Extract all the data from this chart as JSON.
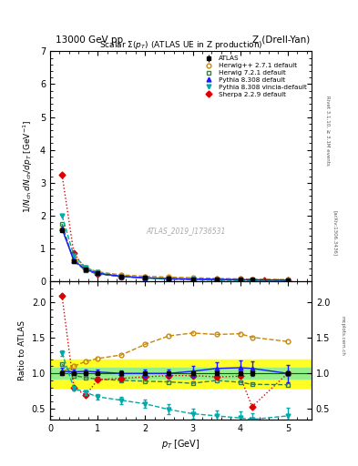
{
  "title_top": "13000 GeV pp",
  "title_right": "Z (Drell-Yan)",
  "plot_title": "Scalar Σ(p_T) (ATLAS UE in Z production)",
  "ylabel_main": "1/N_{ch} dN_{ch}/dp_T [GeV⁻¹]",
  "ylabel_ratio": "Ratio to ATLAS",
  "xlabel": "p_T [GeV]",
  "watermark": "ATLAS_2019_I1736531",
  "rivet_label": "Rivet 3.1.10, ≥ 3.1M events",
  "arxiv_label": "[arXiv:1306.3436]",
  "mcplots_label": "mcplots.cern.ch",
  "atlas_x": [
    0.25,
    0.5,
    0.75,
    1.0,
    1.5,
    2.0,
    2.5,
    3.0,
    3.5,
    4.0,
    4.25,
    5.0
  ],
  "atlas_y": [
    1.55,
    0.62,
    0.35,
    0.24,
    0.155,
    0.11,
    0.085,
    0.07,
    0.058,
    0.048,
    0.045,
    0.038
  ],
  "atlas_yerr": [
    0.05,
    0.02,
    0.01,
    0.008,
    0.005,
    0.004,
    0.003,
    0.003,
    0.002,
    0.002,
    0.002,
    0.002
  ],
  "herwig271_x": [
    0.25,
    0.5,
    0.75,
    1.0,
    1.5,
    2.0,
    2.5,
    3.0,
    3.5,
    4.0,
    4.25,
    5.0
  ],
  "herwig271_y": [
    1.58,
    0.68,
    0.41,
    0.29,
    0.195,
    0.155,
    0.13,
    0.11,
    0.09,
    0.075,
    0.068,
    0.055
  ],
  "herwig721_x": [
    0.25,
    0.5,
    0.75,
    1.0,
    1.5,
    2.0,
    2.5,
    3.0,
    3.5,
    4.0,
    4.25,
    5.0
  ],
  "herwig721_y": [
    1.75,
    0.6,
    0.33,
    0.22,
    0.14,
    0.098,
    0.075,
    0.06,
    0.052,
    0.042,
    0.038,
    0.032
  ],
  "pythia308_x": [
    0.25,
    0.5,
    0.75,
    1.0,
    1.5,
    2.0,
    2.5,
    3.0,
    3.5,
    4.0,
    4.25,
    5.0
  ],
  "pythia308_y": [
    1.6,
    0.63,
    0.36,
    0.245,
    0.155,
    0.11,
    0.085,
    0.072,
    0.062,
    0.052,
    0.048,
    0.038
  ],
  "pythia308v_x": [
    0.25,
    0.5,
    0.75,
    1.0,
    1.5,
    2.0,
    2.5,
    3.0,
    3.5,
    4.0,
    4.25,
    5.0
  ],
  "pythia308v_y": [
    2.0,
    0.78,
    0.42,
    0.27,
    0.155,
    0.1,
    0.065,
    0.045,
    0.032,
    0.022,
    0.019,
    0.015
  ],
  "sherpa229_x": [
    0.25,
    0.5,
    0.75,
    1.0,
    1.5,
    2.0,
    2.5,
    3.0,
    3.5,
    4.0,
    4.5,
    5.0
  ],
  "sherpa229_y": [
    3.25,
    0.85,
    0.38,
    0.235,
    0.145,
    0.105,
    0.082,
    0.068,
    0.055,
    0.046,
    0.042,
    0.038
  ],
  "ratio_x": [
    0.25,
    0.5,
    0.75,
    1.0,
    1.5,
    2.0,
    2.5,
    3.0,
    3.5,
    4.0,
    4.25,
    5.0
  ],
  "ratio_herwig271": [
    1.02,
    1.1,
    1.17,
    1.21,
    1.26,
    1.41,
    1.53,
    1.57,
    1.55,
    1.56,
    1.51,
    1.45
  ],
  "ratio_herwig721": [
    1.13,
    0.97,
    0.94,
    0.92,
    0.9,
    0.89,
    0.88,
    0.86,
    0.9,
    0.875,
    0.845,
    0.84
  ],
  "ratio_pythia308": [
    1.03,
    1.02,
    1.03,
    1.02,
    1.0,
    1.0,
    1.0,
    1.03,
    1.07,
    1.08,
    1.07,
    1.0
  ],
  "ratio_pythia308_err": [
    0.05,
    0.03,
    0.03,
    0.03,
    0.04,
    0.05,
    0.06,
    0.08,
    0.09,
    0.1,
    0.1,
    0.12
  ],
  "ratio_pythia308v": [
    1.29,
    0.79,
    0.73,
    0.67,
    0.62,
    0.57,
    0.49,
    0.43,
    0.4,
    0.37,
    0.35,
    0.4
  ],
  "ratio_pythia308v_err": [
    0.04,
    0.03,
    0.03,
    0.04,
    0.05,
    0.06,
    0.07,
    0.07,
    0.08,
    0.09,
    0.09,
    0.12
  ],
  "ratio_sherpa229_x": [
    0.25,
    0.5,
    0.75,
    1.0,
    1.5,
    2.0,
    2.5,
    3.0,
    3.5,
    4.0,
    4.25,
    5.0
  ],
  "ratio_sherpa229": [
    2.1,
    0.8,
    0.69,
    0.91,
    0.93,
    0.95,
    0.97,
    0.97,
    0.95,
    0.96,
    0.53,
    1.0
  ],
  "ratio_atlas_band_green": 0.08,
  "ratio_atlas_band_yellow": 0.2,
  "color_herwig271": "#c8860a",
  "color_herwig721": "#3a7d44",
  "color_pythia308": "#1a1aff",
  "color_pythia308v": "#00aaaa",
  "color_sherpa229": "#dd0000",
  "color_atlas": "#000000",
  "ylim_main": [
    0,
    7
  ],
  "ylim_ratio": [
    0.35,
    2.3
  ],
  "xlim": [
    0,
    5.5
  ],
  "xticks": [
    0,
    1,
    2,
    3,
    4,
    5
  ],
  "yticks_main": [
    0,
    1,
    2,
    3,
    4,
    5,
    6,
    7
  ],
  "yticks_ratio": [
    0.5,
    1.0,
    1.5,
    2.0
  ]
}
